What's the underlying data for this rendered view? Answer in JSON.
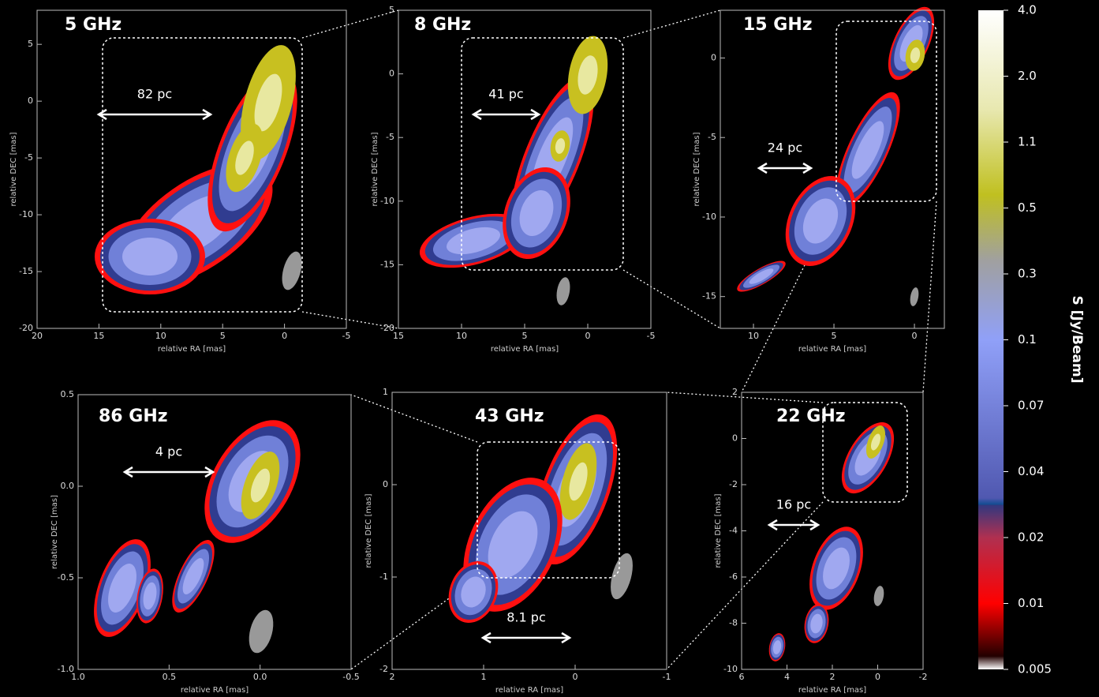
{
  "panels": [
    {
      "label": "5 GHz",
      "scale": "82 pc",
      "xlabel": "relative RA [mas]",
      "ylabel": "relative DEC [mas]",
      "xlim": [
        20,
        -5
      ],
      "ylim": [
        -20,
        8
      ],
      "xticks": [
        20,
        15,
        10,
        5,
        0,
        -5
      ],
      "yticks": [
        5,
        0,
        -5,
        -10,
        -15,
        -20
      ]
    },
    {
      "label": "8 GHz",
      "scale": "41 pc",
      "xlabel": "relative RA [mas]",
      "ylabel": "relative DEC [mas]",
      "xlim": [
        15,
        -5
      ],
      "ylim": [
        -20,
        5
      ],
      "xticks": [
        15,
        10,
        5,
        0,
        -5
      ],
      "yticks": [
        5,
        0,
        -5,
        -10,
        -15,
        -20
      ]
    },
    {
      "label": "15 GHz",
      "scale": "24 pc",
      "xlabel": "relative RA [mas]",
      "ylabel": "relative DEC [mas]",
      "xlim": [
        12.06,
        -1.86
      ],
      "ylim": [
        -17,
        3
      ],
      "xticks": [
        10,
        5,
        0
      ],
      "yticks": [
        0,
        -5,
        -10,
        -15
      ]
    },
    {
      "label": "86 GHz",
      "scale": "4 pc",
      "xlabel": "relative RA [mas]",
      "ylabel": "relative DEC [mas]",
      "xlim": [
        1.0,
        -0.5
      ],
      "ylim": [
        -1.0,
        0.5
      ],
      "xticks": [
        {
          "value": 1.0,
          "label": "1.0"
        },
        0.5,
        {
          "value": 0.0,
          "label": "0.0"
        },
        -0.5
      ],
      "yticks": [
        0.5,
        {
          "value": 0.0,
          "label": "0.0"
        },
        -0.5,
        {
          "value": -1.0,
          "label": "-1.0"
        }
      ]
    },
    {
      "label": "43 GHz",
      "scale": "8.1 pc",
      "xlabel": "relative RA [mas]",
      "ylabel": "relative DEC [mas]",
      "xlim": [
        2,
        -1
      ],
      "ylim": [
        -2,
        1
      ],
      "xticks": [
        2,
        1,
        0,
        -1
      ],
      "yticks": [
        1,
        0,
        -1,
        -2
      ]
    },
    {
      "label": "22 GHz",
      "scale": "16 pc",
      "xlabel": "relative RA [mas]",
      "ylabel": "relative DEC [mas]",
      "xlim": [
        6,
        -2
      ],
      "ylim": [
        -10,
        2
      ],
      "xticks": [
        6,
        4,
        2,
        0,
        -2
      ],
      "yticks": [
        2,
        0,
        -2,
        -4,
        -6,
        -8,
        -10
      ]
    }
  ],
  "colorbar": {
    "label": "S [Jy/Beam]",
    "ticks": [
      "4.0",
      "2.0",
      "1.1",
      "0.5",
      "0.3",
      "0.1",
      "0.07",
      "0.04",
      "0.02",
      "0.01",
      "0.005"
    ]
  }
}
